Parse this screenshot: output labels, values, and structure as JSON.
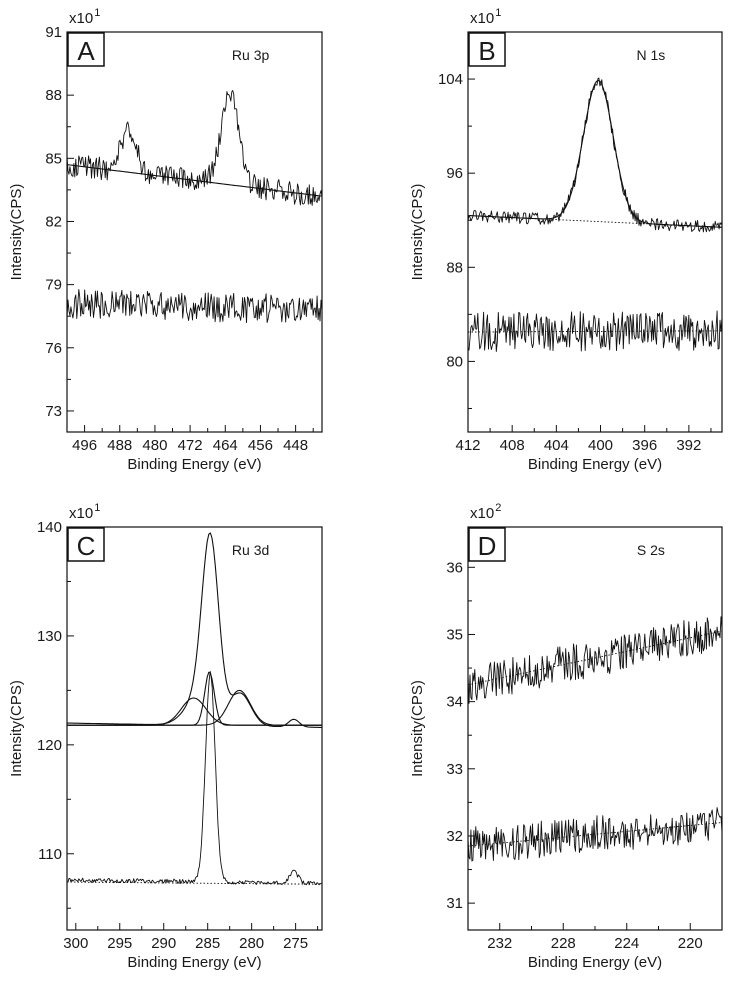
{
  "chart_data": [
    {
      "panel": "A",
      "type": "line",
      "annotation": "Ru 3p",
      "multiplier": {
        "base": "x10",
        "exp": "1"
      },
      "xlabel": "Binding Energy (eV)",
      "ylabel": "Intensity(CPS)",
      "xlim": [
        500,
        442
      ],
      "ylim": [
        72,
        91
      ],
      "xticks": [
        496,
        488,
        480,
        472,
        464,
        456,
        448
      ],
      "yticks": [
        73,
        76,
        79,
        82,
        85,
        88,
        91
      ],
      "series": [
        {
          "name": "upper spectrum",
          "kind": "noisy",
          "baseline": [
            [
              500,
              84.7
            ],
            [
              442,
              83.2
            ]
          ],
          "noise": 0.55,
          "peaks": [
            [
              486.0,
              2.0,
              1.8
            ],
            [
              463.0,
              4.3,
              2.0
            ]
          ]
        },
        {
          "name": "upper background",
          "kind": "smooth",
          "baseline": [
            [
              500,
              84.7
            ],
            [
              442,
              83.2
            ]
          ],
          "peaks": []
        },
        {
          "name": "lower spectrum",
          "kind": "noisy",
          "baseline": [
            [
              500,
              78.1
            ],
            [
              442,
              77.8
            ]
          ],
          "noise": 0.7,
          "peaks": []
        }
      ]
    },
    {
      "panel": "B",
      "type": "line",
      "annotation": "N 1s",
      "multiplier": {
        "base": "x10",
        "exp": "1"
      },
      "xlabel": "Binding Energy (eV)",
      "ylabel": "Intensity(CPS)",
      "xlim": [
        412,
        389
      ],
      "ylim": [
        74,
        108
      ],
      "xticks": [
        412,
        408,
        404,
        400,
        396,
        392
      ],
      "yticks": [
        80,
        88,
        96,
        104
      ],
      "series": [
        {
          "name": "upper spectrum",
          "kind": "noisy",
          "baseline": [
            [
              412,
              92.4
            ],
            [
              389,
              91.4
            ]
          ],
          "noise": 0.5,
          "peaks": [
            [
              400.2,
              12.0,
              1.35
            ]
          ]
        },
        {
          "name": "upper fit",
          "kind": "smooth",
          "baseline": [
            [
              412,
              92.4
            ],
            [
              389,
              91.4
            ]
          ],
          "peaks": [
            [
              400.2,
              12.0,
              1.35
            ]
          ]
        },
        {
          "name": "upper background",
          "kind": "dotted",
          "baseline": [
            [
              412,
              92.4
            ],
            [
              389,
              91.4
            ]
          ],
          "peaks": []
        },
        {
          "name": "lower spectrum",
          "kind": "noisy",
          "baseline": [
            [
              412,
              82.5
            ],
            [
              389,
              82.6
            ]
          ],
          "noise": 1.7,
          "peaks": []
        },
        {
          "name": "lower fit",
          "kind": "dotted",
          "baseline": [
            [
              412,
              82.5
            ],
            [
              389,
              82.6
            ]
          ],
          "peaks": []
        }
      ]
    },
    {
      "panel": "C",
      "type": "line",
      "annotation": "Ru 3d",
      "multiplier": {
        "base": "x10",
        "exp": "1"
      },
      "xlabel": "Binding Energy (eV)",
      "ylabel": "Intensity(CPS)",
      "xlim": [
        301,
        272
      ],
      "ylim": [
        103,
        140
      ],
      "xticks": [
        300,
        295,
        290,
        285,
        280,
        275
      ],
      "yticks": [
        110,
        120,
        130,
        140
      ],
      "series": [
        {
          "name": "upper envelope",
          "kind": "smooth",
          "baseline": [
            [
              301,
              122.0
            ],
            [
              272,
              121.6
            ]
          ],
          "peaks": [
            [
              284.7,
              16.3,
              0.95
            ],
            [
              286.2,
              2.2,
              1.5
            ],
            [
              281.3,
              3.0,
              1.2
            ],
            [
              275.2,
              0.7,
              0.6
            ]
          ]
        },
        {
          "name": "upper component 1",
          "kind": "smooth",
          "baseline": [
            [
              301,
              121.8
            ],
            [
              272,
              121.8
            ]
          ],
          "peaks": [
            [
              286.6,
              2.5,
              1.4
            ]
          ]
        },
        {
          "name": "upper component 2",
          "kind": "smooth",
          "baseline": [
            [
              301,
              121.8
            ],
            [
              272,
              121.8
            ]
          ],
          "peaks": [
            [
              281.4,
              3.2,
              1.25
            ]
          ]
        },
        {
          "name": "upper component 3",
          "kind": "smooth",
          "baseline": [
            [
              301,
              121.8
            ],
            [
              272,
              121.8
            ]
          ],
          "peaks": [
            [
              284.8,
              4.9,
              0.55
            ]
          ]
        },
        {
          "name": "lower spectrum",
          "kind": "noisy",
          "baseline": [
            [
              301,
              107.6
            ],
            [
              272,
              107.3
            ]
          ],
          "noise": 0.2,
          "peaks": [
            [
              284.7,
              19.2,
              0.55
            ],
            [
              275.2,
              1.0,
              0.5
            ]
          ]
        },
        {
          "name": "lower background",
          "kind": "dotted",
          "baseline": [
            [
              301,
              107.4
            ],
            [
              272,
              107.2
            ]
          ],
          "peaks": []
        }
      ]
    },
    {
      "panel": "D",
      "type": "line",
      "annotation": "S 2s",
      "multiplier": {
        "base": "x10",
        "exp": "2"
      },
      "xlabel": "Binding Energy (eV)",
      "ylabel": "Intensity(CPS)",
      "xlim": [
        234,
        218
      ],
      "ylim": [
        30.6,
        36.6
      ],
      "xticks": [
        232,
        228,
        224,
        220
      ],
      "yticks": [
        31,
        32,
        33,
        34,
        35,
        36
      ],
      "series": [
        {
          "name": "upper spectrum",
          "kind": "noisy",
          "baseline": [
            [
              234,
              34.25
            ],
            [
              218,
              35.05
            ]
          ],
          "noise": 0.28,
          "peaks": []
        },
        {
          "name": "upper fit",
          "kind": "dotted",
          "baseline": [
            [
              234,
              34.25
            ],
            [
              218,
              35.05
            ]
          ],
          "peaks": []
        },
        {
          "name": "lower spectrum",
          "kind": "noisy",
          "baseline": [
            [
              234,
              31.85
            ],
            [
              218,
              32.2
            ]
          ],
          "noise": 0.28,
          "peaks": []
        },
        {
          "name": "lower fit",
          "kind": "dotted",
          "baseline": [
            [
              234,
              31.85
            ],
            [
              218,
              32.2
            ]
          ],
          "peaks": []
        }
      ]
    }
  ]
}
